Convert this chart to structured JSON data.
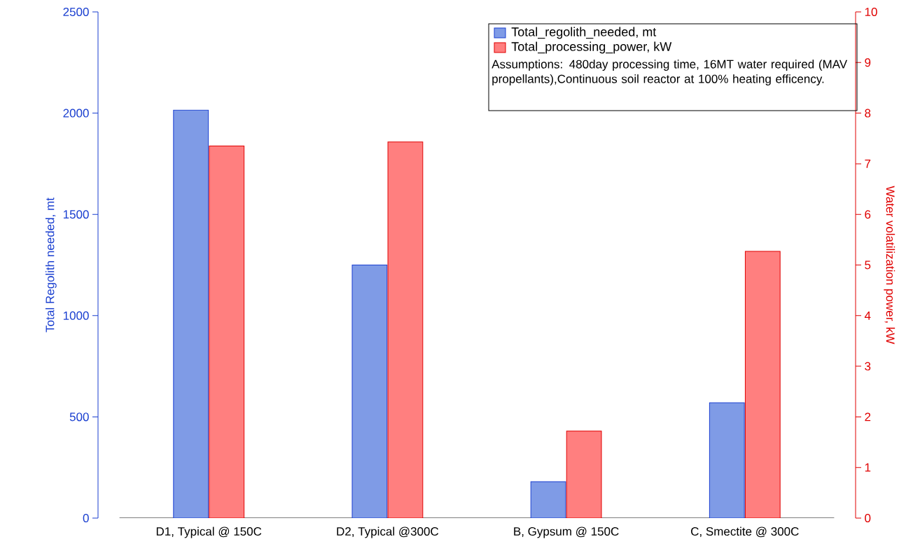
{
  "chart_data": {
    "type": "bar",
    "categories": [
      "D1, Typical @ 150C",
      "D2, Typical @300C",
      "B, Gypsum @ 150C",
      "C, Smectite @ 300C"
    ],
    "ylabel": "Total Regolith needed, mt",
    "y2label": "Water volatilization power, kW",
    "ylim": [
      0,
      2500
    ],
    "yticks": [
      0,
      500,
      1000,
      1500,
      2000,
      2500
    ],
    "y2lim": [
      0,
      10
    ],
    "y2ticks": [
      0,
      1,
      2,
      3,
      4,
      5,
      6,
      7,
      8,
      9,
      10
    ],
    "series": [
      {
        "name": "Total_regolith_needed, mt",
        "color": "#7f9be6",
        "values": [
          2015,
          1250,
          180,
          570
        ]
      },
      {
        "name": "Total_processing_power, kW",
        "color": "#ff7f7f",
        "values": [
          7.35,
          7.43,
          1.72,
          5.27
        ],
        "axis": "y2"
      }
    ],
    "legend": "top right",
    "annotations": [
      "Assumptions: 480day processing time, 16MT water required (MAV propellants),Continuous soil reactor at 100% heating efficency."
    ]
  }
}
